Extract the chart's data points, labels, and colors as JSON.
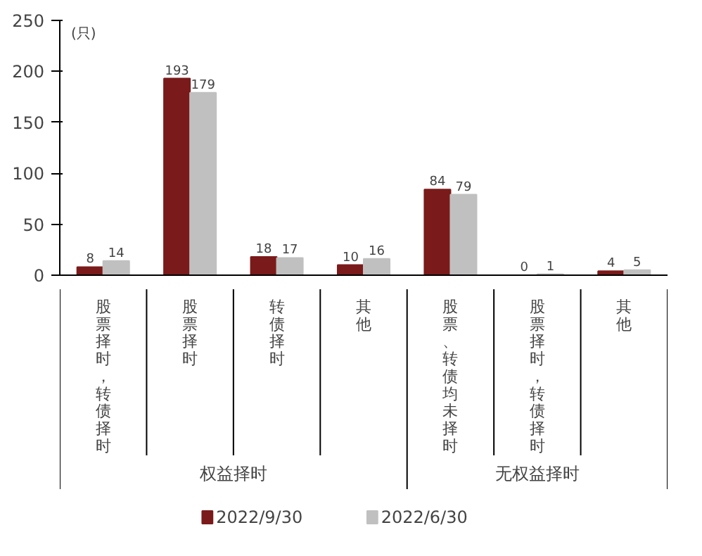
{
  "chart_data": {
    "type": "bar",
    "ylabel": "(只)",
    "categories": [
      "股票择时，转债择时",
      "股票择时",
      "转债择时",
      "其他",
      "股票、转债均未择时",
      "股票择时，转债择时",
      "其他"
    ],
    "series": [
      {
        "name": "2022/9/30",
        "color": "#7b1a1a",
        "values": [
          8,
          193,
          18,
          10,
          84,
          0,
          4
        ]
      },
      {
        "name": "2022/6/30",
        "color": "#c0c0c0",
        "values": [
          14,
          179,
          17,
          16,
          79,
          1,
          5
        ]
      }
    ],
    "ylim": [
      0,
      250
    ],
    "yticks": [
      0,
      50,
      100,
      150,
      200,
      250
    ],
    "data_labels": true,
    "grid": false,
    "legend": "bottom",
    "annotations": [
      "权益择时",
      "无权益择时"
    ]
  }
}
